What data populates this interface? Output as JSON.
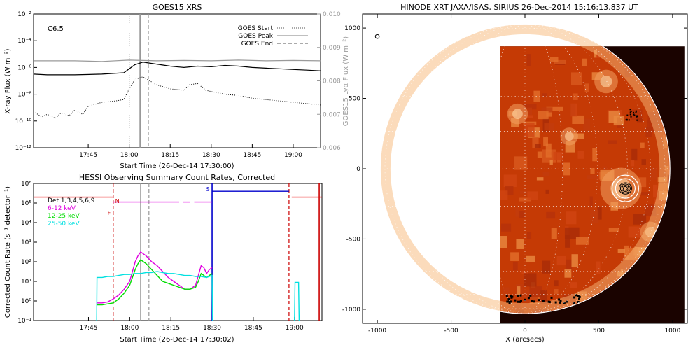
{
  "chart_data": [
    {
      "type": "line",
      "title": "GOES15 XRS",
      "xlabel": "Start Time (26-Dec-14 17:30:00)",
      "ylabel": "X-ray Flux (W m⁻²)",
      "y2label": "GOES15 Lyα Flux (W m⁻²)",
      "class_label": "C6.5",
      "xlim": [
        -5,
        100
      ],
      "x_ticks": [
        {
          "value": 15,
          "label": "17:45"
        },
        {
          "value": 30,
          "label": "18:00"
        },
        {
          "value": 45,
          "label": "18:15"
        },
        {
          "value": 60,
          "label": "18:30"
        },
        {
          "value": 75,
          "label": "18:45"
        },
        {
          "value": 90,
          "label": "19:00"
        }
      ],
      "ylim_log": [
        -12,
        -2
      ],
      "y_ticks": [
        {
          "exp": -2,
          "label": "10⁻²"
        },
        {
          "exp": -4,
          "label": "10⁻⁴"
        },
        {
          "exp": -6,
          "label": "10⁻⁶"
        },
        {
          "exp": -8,
          "label": "10⁻⁸"
        },
        {
          "exp": -10,
          "label": "10⁻¹⁰"
        },
        {
          "exp": -12,
          "label": "10⁻¹²"
        }
      ],
      "y2lim": [
        0.006,
        0.01
      ],
      "y2_ticks": [
        {
          "value": 0.01,
          "label": "0.010"
        },
        {
          "value": 0.009,
          "label": "0.009"
        },
        {
          "value": 0.008,
          "label": "0.008"
        },
        {
          "value": 0.007,
          "label": "0.007"
        },
        {
          "value": 0.006,
          "label": "0.006"
        }
      ],
      "legend": [
        {
          "label": "GOES Start",
          "style": "dotted"
        },
        {
          "label": "GOES Peak",
          "style": "solid"
        },
        {
          "label": "GOES End",
          "style": "dashed"
        }
      ],
      "vlines": [
        {
          "x": 30,
          "style": "dotted"
        },
        {
          "x": 34,
          "style": "solid"
        },
        {
          "x": 37,
          "style": "dashed"
        }
      ],
      "series": [
        {
          "name": "long",
          "style": "solid",
          "color": "#000000",
          "x": [
            -5,
            0,
            10,
            20,
            28,
            32,
            35,
            40,
            45,
            50,
            55,
            60,
            65,
            70,
            75,
            80,
            85,
            90,
            95,
            100
          ],
          "logy": [
            -6.5,
            -6.55,
            -6.55,
            -6.5,
            -6.4,
            -5.8,
            -5.6,
            -5.75,
            -5.9,
            -6.0,
            -5.9,
            -5.95,
            -5.85,
            -5.9,
            -6.0,
            -6.05,
            -6.1,
            -6.15,
            -6.2,
            -6.25
          ]
        },
        {
          "name": "short",
          "style": "dotted",
          "color": "#000000",
          "x": [
            -5,
            -2,
            0,
            3,
            5,
            8,
            10,
            13,
            15,
            20,
            25,
            28,
            30,
            32,
            35,
            40,
            45,
            50,
            52,
            55,
            58,
            60,
            65,
            70,
            75,
            80,
            85,
            90,
            95,
            100
          ],
          "logy": [
            -9.3,
            -9.7,
            -9.5,
            -9.8,
            -9.4,
            -9.6,
            -9.2,
            -9.5,
            -8.9,
            -8.6,
            -8.5,
            -8.4,
            -7.6,
            -6.9,
            -6.7,
            -7.3,
            -7.6,
            -7.7,
            -7.3,
            -7.2,
            -7.7,
            -7.8,
            -8.0,
            -8.1,
            -8.3,
            -8.4,
            -8.5,
            -8.6,
            -8.7,
            -8.8
          ]
        },
        {
          "name": "lya",
          "style": "solid",
          "color": "#9a9a9a",
          "axis": "y2",
          "x": [
            -5,
            10,
            20,
            30,
            40,
            50,
            60,
            70,
            80,
            90,
            100
          ],
          "y": [
            0.0086,
            0.0086,
            0.00858,
            0.00862,
            0.0086,
            0.00861,
            0.0086,
            0.00862,
            0.0086,
            0.00861,
            0.0086
          ]
        }
      ]
    },
    {
      "type": "line",
      "title": "HESSI Observing Summary Count Rates, Corrected",
      "xlabel": "Start Time (26-Dec-14 17:30:02)",
      "ylabel": "Corrected Count Rate (s⁻¹ detector⁻¹)",
      "xlim": [
        -5,
        100
      ],
      "x_ticks": [
        {
          "value": 15,
          "label": "17:45"
        },
        {
          "value": 30,
          "label": "18:00"
        },
        {
          "value": 45,
          "label": "18:15"
        },
        {
          "value": 60,
          "label": "18:30"
        },
        {
          "value": 75,
          "label": "18:45"
        },
        {
          "value": 90,
          "label": "19:00"
        }
      ],
      "ylim_log": [
        -1,
        6
      ],
      "y_ticks": [
        {
          "exp": 6,
          "label": "10⁶"
        },
        {
          "exp": 5,
          "label": "10⁵"
        },
        {
          "exp": 4,
          "label": "10⁴"
        },
        {
          "exp": 3,
          "label": "10³"
        },
        {
          "exp": 2,
          "label": "10²"
        },
        {
          "exp": 1,
          "label": "10¹"
        },
        {
          "exp": 0,
          "label": "10⁰"
        },
        {
          "exp": -1,
          "label": "10⁻¹"
        }
      ],
      "legend": [
        {
          "label": "Det 1,3,4,5,6,9",
          "color": "#000000"
        },
        {
          "label": "6-12 keV",
          "color": "#e000e0"
        },
        {
          "label": "12-25 keV",
          "color": "#00dd00"
        },
        {
          "label": "25-50 keV",
          "color": "#00e0e0"
        }
      ],
      "flag_labels": [
        {
          "x": 25.5,
          "logy": 5.0,
          "text": "N",
          "color": "#cc0000"
        },
        {
          "x": 22.5,
          "logy": 4.4,
          "text": "F",
          "color": "#cc0000"
        },
        {
          "x": 58.5,
          "logy": 5.6,
          "text": "S",
          "color": "#0000cc"
        }
      ],
      "vlines": [
        {
          "x": 24,
          "style": "dashed",
          "color": "#cc0000"
        },
        {
          "x": 34,
          "style": "solid",
          "color": "#999999"
        },
        {
          "x": 37,
          "style": "dashed",
          "color": "#999999"
        },
        {
          "x": 60,
          "style": "solid",
          "color": "#0000cc"
        },
        {
          "x": 88,
          "style": "dashed",
          "color": "#cc0000"
        },
        {
          "x": 99,
          "style": "solid",
          "color": "#cc0000"
        }
      ],
      "series": [
        {
          "name": "night-red",
          "color": "#ee0000",
          "x": [
            -5,
            24
          ],
          "logy": [
            5.3,
            5.3
          ]
        },
        {
          "name": "night-red-2",
          "color": "#ee0000",
          "x": [
            89,
            100
          ],
          "logy": [
            5.3,
            5.3
          ]
        },
        {
          "name": "attenuator-magenta-1",
          "color": "#e000e0",
          "x": [
            24,
            48
          ],
          "logy": [
            5.05,
            5.05
          ]
        },
        {
          "name": "attenuator-magenta-2",
          "color": "#e000e0",
          "x": [
            49.5,
            52
          ],
          "logy": [
            5.05,
            5.05
          ]
        },
        {
          "name": "attenuator-magenta-3",
          "color": "#e000e0",
          "x": [
            53.5,
            60
          ],
          "logy": [
            5.05,
            5.05
          ]
        },
        {
          "name": "saa-blue",
          "color": "#0000cc",
          "x": [
            60,
            88
          ],
          "logy": [
            5.6,
            5.6
          ]
        },
        {
          "name": "6-12 keV",
          "color": "#e000e0",
          "x": [
            18,
            20,
            22,
            24,
            26,
            28,
            30,
            31,
            32,
            33,
            34,
            35,
            36,
            38,
            40,
            42,
            44,
            46,
            48,
            50,
            52,
            54,
            55,
            56,
            57,
            58,
            59,
            60
          ],
          "logy": [
            -0.1,
            -0.1,
            -0.05,
            0.1,
            0.3,
            0.6,
            1.0,
            1.5,
            2.0,
            2.3,
            2.5,
            2.4,
            2.3,
            2.0,
            1.8,
            1.5,
            1.2,
            1.0,
            0.8,
            0.6,
            0.6,
            0.8,
            1.3,
            1.8,
            1.7,
            1.4,
            1.6,
            1.7
          ]
        },
        {
          "name": "12-25 keV",
          "color": "#00dd00",
          "x": [
            18,
            20,
            22,
            24,
            26,
            28,
            30,
            31,
            32,
            33,
            34,
            35,
            36,
            38,
            40,
            42,
            44,
            46,
            48,
            50,
            52,
            54,
            55,
            56,
            57,
            58,
            59,
            60
          ],
          "logy": [
            -0.2,
            -0.2,
            -0.15,
            -0.1,
            0.1,
            0.4,
            0.8,
            1.2,
            1.6,
            1.9,
            2.1,
            2.0,
            1.9,
            1.6,
            1.3,
            1.0,
            0.9,
            0.8,
            0.7,
            0.6,
            0.6,
            0.7,
            1.0,
            1.4,
            1.3,
            1.2,
            1.3,
            1.4
          ]
        },
        {
          "name": "25-50 keV",
          "color": "#00e0e0",
          "x": [
            18,
            18.1,
            20,
            22,
            24,
            26,
            28,
            30,
            32,
            34,
            36,
            38,
            40,
            42,
            44,
            46,
            48,
            50,
            52,
            54,
            56,
            58,
            60,
            60.2
          ],
          "logy": [
            -1,
            1.2,
            1.2,
            1.25,
            1.25,
            1.3,
            1.35,
            1.35,
            1.4,
            1.4,
            1.45,
            1.45,
            1.5,
            1.45,
            1.4,
            1.4,
            1.35,
            1.3,
            1.3,
            1.25,
            1.25,
            1.2,
            1.3,
            -1
          ]
        },
        {
          "name": "25-50 keV-b",
          "color": "#00e0e0",
          "x": [
            90,
            90.2,
            91.5,
            91.7
          ],
          "logy": [
            -1,
            0.95,
            0.95,
            -1
          ]
        }
      ]
    },
    {
      "type": "heatmap",
      "title": "HINODE XRT JAXA/ISAS, SIRIUS 26-Dec-2014 15:16:13.837 UT",
      "xlabel": "X (arcsecs)",
      "ylabel": "",
      "xlim": [
        -1100,
        1100
      ],
      "ylim": [
        -1100,
        1100
      ],
      "x_ticks": [
        {
          "value": -1000,
          "label": "-1000"
        },
        {
          "value": -500,
          "label": "-500"
        },
        {
          "value": 0,
          "label": "0"
        },
        {
          "value": 500,
          "label": "500"
        },
        {
          "value": 1000,
          "label": "1000"
        }
      ],
      "y_ticks": [
        {
          "value": 1000,
          "label": "1000"
        },
        {
          "value": 500,
          "label": "500"
        },
        {
          "value": 0,
          "label": "0"
        },
        {
          "value": -500,
          "label": "-500"
        },
        {
          "value": -1000,
          "label": "-1000"
        }
      ],
      "solar_radius": 982,
      "data_extent": {
        "x": [
          -170,
          1080
        ],
        "y": [
          -1100,
          870
        ]
      },
      "contour_center": [
        680,
        -140
      ],
      "marker_point": [
        -1000,
        940
      ],
      "colors": {
        "dark": "#1a0300",
        "mid": "#c53a05",
        "bright": "#ffd9a6"
      }
    }
  ]
}
